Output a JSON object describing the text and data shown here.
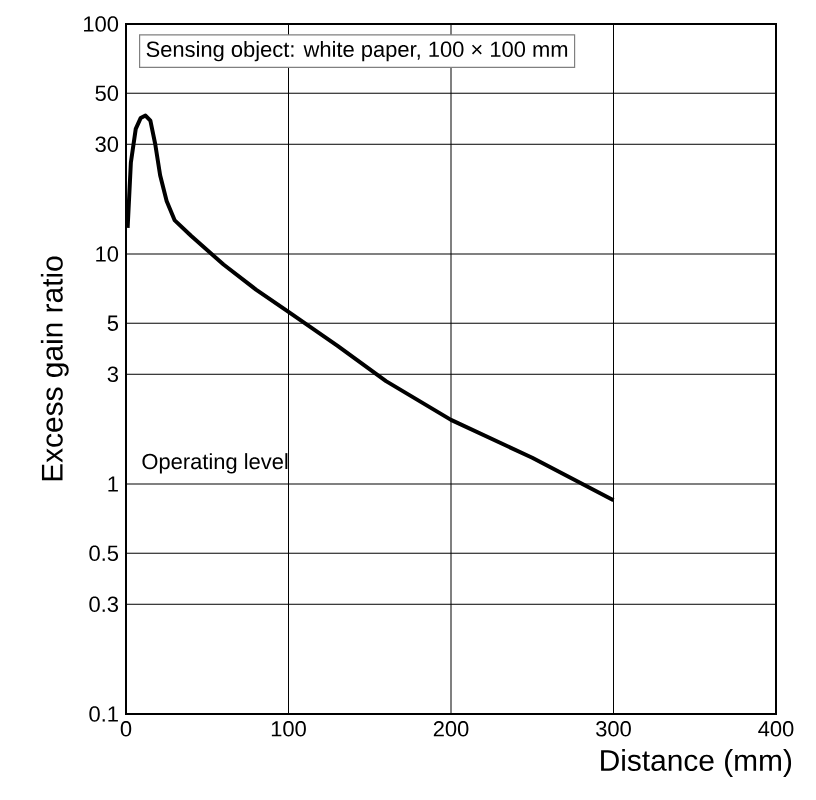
{
  "chart_data": {
    "type": "line",
    "xlabel": "Distance (mm)",
    "ylabel": "Excess gain ratio",
    "x": [
      1,
      3,
      6,
      9,
      12,
      15,
      18,
      21,
      25,
      30,
      40,
      60,
      80,
      100,
      130,
      160,
      200,
      250,
      300
    ],
    "series": [
      {
        "color": "#000000",
        "values": [
          13,
          25,
          35,
          39,
          40,
          38,
          30,
          22,
          17,
          14,
          12,
          9,
          7,
          5.6,
          4,
          2.8,
          1.9,
          1.3,
          0.85
        ]
      }
    ],
    "xlim": [
      0,
      400
    ],
    "ylim": [
      0.1,
      100
    ],
    "xticks": [
      0,
      100,
      200,
      300,
      400
    ],
    "yticks": [
      0.1,
      0.3,
      0.5,
      1,
      3,
      5,
      10,
      30,
      50,
      100
    ],
    "log": "y",
    "grid": true,
    "marker": "none",
    "line_style": "solid",
    "annotations": [
      "Sensing object: white paper, 100 × 100 mm",
      "Operating level"
    ]
  }
}
